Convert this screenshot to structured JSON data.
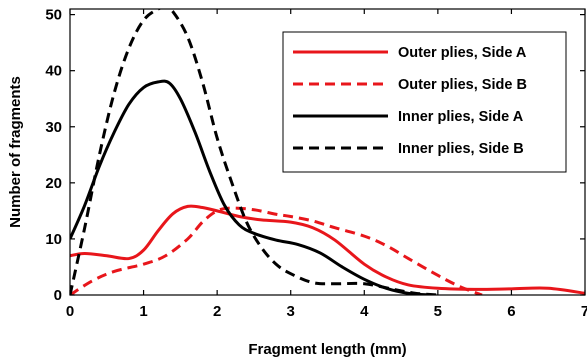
{
  "chart_data": {
    "type": "line",
    "xlabel": "Fragment length (mm)",
    "ylabel": "Number of fragments",
    "xlim": [
      0,
      7
    ],
    "ylim": [
      0,
      51
    ],
    "x_ticks": [
      "0",
      "1",
      "2",
      "3",
      "4",
      "5",
      "6",
      "7"
    ],
    "y_ticks": [
      "0",
      "10",
      "20",
      "30",
      "40",
      "50"
    ],
    "grid": false,
    "legend_position": "top-right",
    "series": [
      {
        "name": "Outer plies, Side A",
        "color": "#e8161b",
        "dash": "solid",
        "x": [
          0,
          0.2,
          0.5,
          0.8,
          1.0,
          1.2,
          1.4,
          1.6,
          1.8,
          2.0,
          2.3,
          2.6,
          3.0,
          3.3,
          3.6,
          4.0,
          4.3,
          4.6,
          5.0,
          5.5,
          6.0,
          6.5,
          7.0
        ],
        "y": [
          7,
          7.4,
          7,
          6.5,
          8,
          11.5,
          14.5,
          15.8,
          15.6,
          15,
          14,
          13.4,
          13,
          12,
          9.8,
          5.5,
          3.2,
          1.8,
          1.2,
          1.0,
          1.1,
          1.2,
          0.3
        ]
      },
      {
        "name": "Outer plies, Side B",
        "color": "#e8161b",
        "dash": "dashed",
        "x": [
          0,
          0.3,
          0.6,
          1.0,
          1.3,
          1.6,
          1.8,
          2.0,
          2.2,
          2.5,
          2.8,
          3.0,
          3.3,
          3.6,
          4.0,
          4.3,
          4.6,
          5.0,
          5.3,
          5.6
        ],
        "y": [
          0,
          2.5,
          4.2,
          5.5,
          7,
          10,
          13,
          15,
          15.5,
          15.2,
          14.4,
          14,
          13.2,
          12,
          10.5,
          8.8,
          6.5,
          3.5,
          1.5,
          0
        ]
      },
      {
        "name": "Inner plies, Side A",
        "color": "#000000",
        "dash": "solid",
        "x": [
          0,
          0.2,
          0.4,
          0.6,
          0.8,
          1.0,
          1.2,
          1.35,
          1.5,
          1.7,
          1.9,
          2.1,
          2.3,
          2.5,
          2.8,
          3.1,
          3.4,
          3.7,
          4.0,
          4.3,
          4.6,
          4.9
        ],
        "y": [
          10,
          16,
          23,
          29,
          34,
          37,
          38,
          37.8,
          35,
          29,
          22,
          16,
          12.5,
          11,
          9.8,
          9,
          7.5,
          5,
          2.8,
          1.2,
          0.3,
          0
        ]
      },
      {
        "name": "Inner plies, Side B",
        "color": "#000000",
        "dash": "dashed",
        "x": [
          0,
          0.2,
          0.4,
          0.6,
          0.8,
          1.0,
          1.2,
          1.3,
          1.4,
          1.6,
          1.8,
          2.0,
          2.2,
          2.4,
          2.6,
          2.8,
          3.0,
          3.3,
          3.6,
          4.0,
          4.4,
          4.7,
          5.0
        ],
        "y": [
          0,
          12,
          25,
          36,
          44,
          49,
          51,
          51.2,
          50.5,
          46,
          38,
          28,
          20,
          13,
          8.5,
          5.5,
          3.8,
          2.2,
          2.0,
          2.0,
          1.0,
          0.3,
          0
        ]
      }
    ]
  }
}
